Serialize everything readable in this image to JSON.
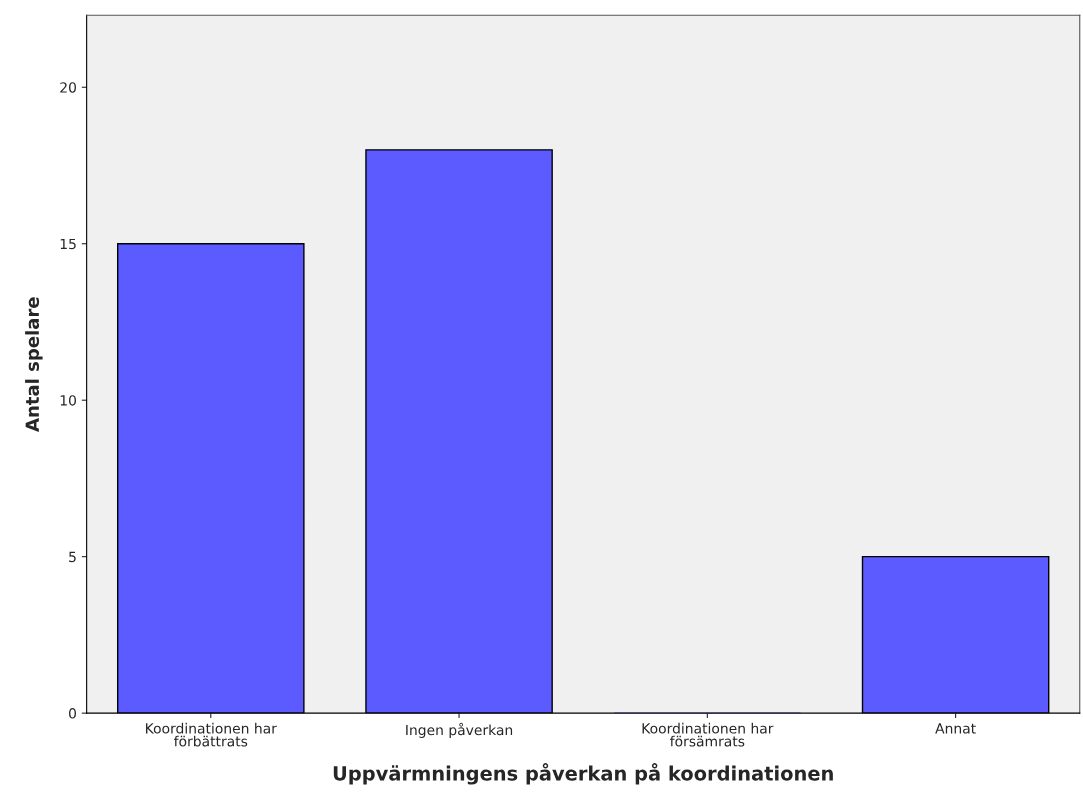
{
  "chart_data": {
    "type": "bar",
    "xlabel": "Uppvärmningens påverkan på koordinationen",
    "ylabel": "Antal spelare",
    "categories": [
      "Koordinationen har\nförbättrats",
      "Ingen påverkan",
      "Koordinationen har\nförsämrats",
      "Annat"
    ],
    "values": [
      15,
      18,
      0,
      5
    ],
    "color": "#5b5bff",
    "ylim": [
      0,
      22.3
    ],
    "yticks": [
      0,
      5,
      10,
      15,
      20
    ],
    "grid": false
  }
}
